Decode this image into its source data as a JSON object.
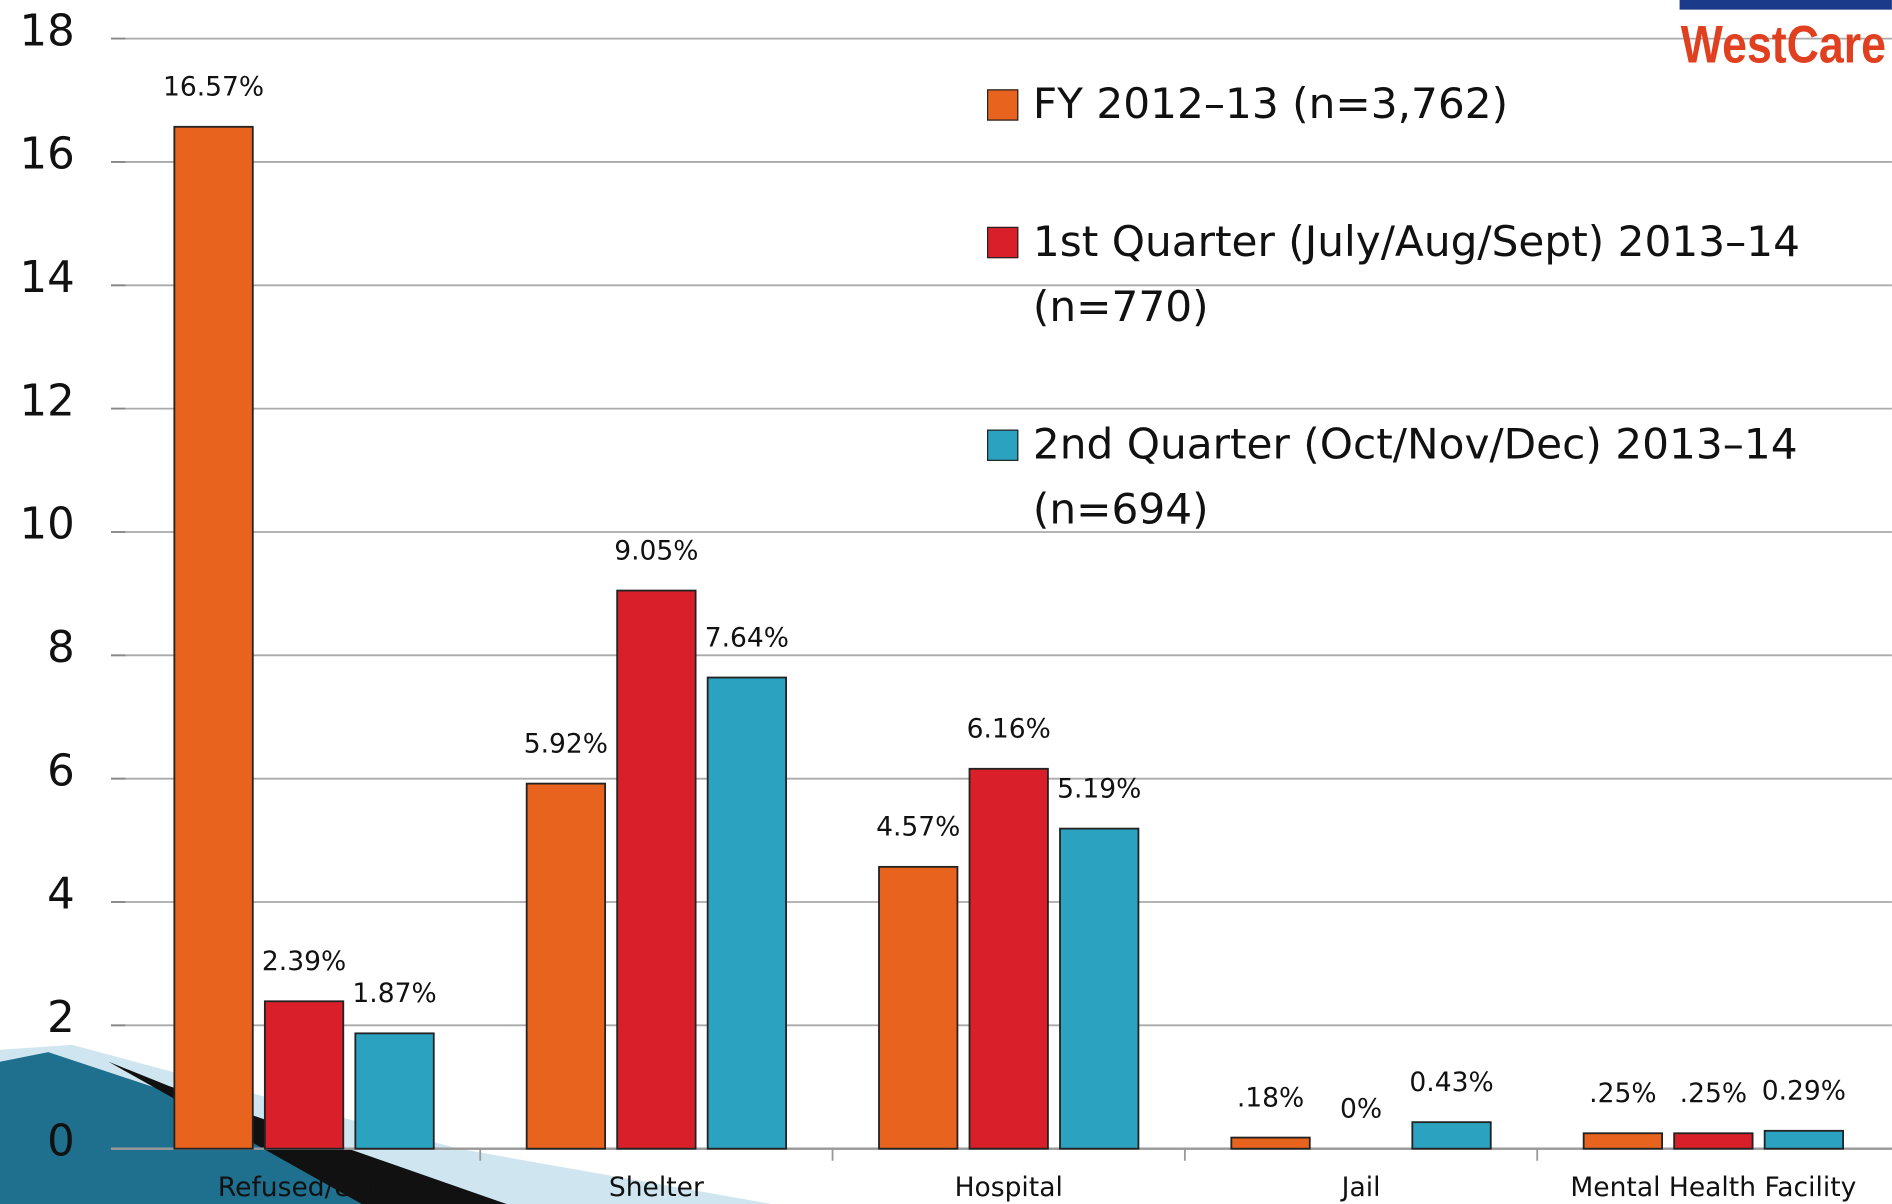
{
  "chart_data": {
    "type": "bar",
    "logo": "WestCare",
    "categories": [
      "Refused/UNK",
      "Shelter",
      "Hospital",
      "Jail",
      "Mental Health Facility"
    ],
    "series": [
      {
        "name": "FY 2012–13 (n=3,762)",
        "color": "#e8641e",
        "values": [
          16.57,
          5.92,
          4.57,
          0.18,
          0.25
        ],
        "value_labels": [
          "16.57%",
          "5.92%",
          "4.57%",
          ".18%",
          ".25%"
        ]
      },
      {
        "name": "1st Quarter (July/Aug/Sept) 2013–14 (n=770)",
        "color": "#d9202a",
        "values": [
          2.39,
          9.05,
          6.16,
          0,
          0.25
        ],
        "value_labels": [
          "2.39%",
          "9.05%",
          "6.16%",
          "0%",
          ".25%"
        ]
      },
      {
        "name": "2nd Quarter (Oct/Nov/Dec) 2013–14 (n=694)",
        "color": "#2ba3c0",
        "values": [
          1.87,
          7.64,
          5.19,
          0.43,
          0.29
        ],
        "value_labels": [
          "1.87%",
          "7.64%",
          "5.19%",
          "0.43%",
          "0.29%"
        ]
      }
    ],
    "ylim": [
      0,
      18
    ],
    "yticks": [
      0,
      2,
      4,
      6,
      8,
      10,
      12,
      14,
      16,
      18
    ],
    "grid": true
  }
}
